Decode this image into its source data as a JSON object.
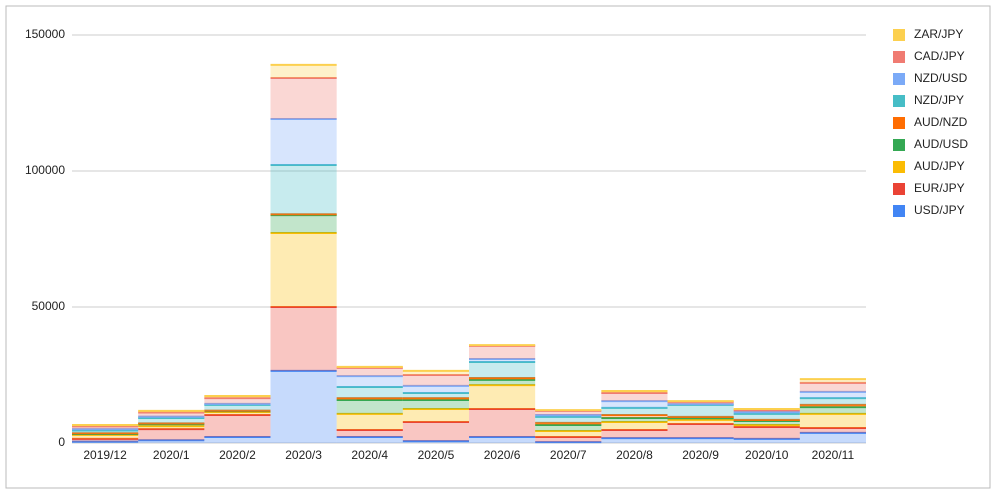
{
  "chart_data": {
    "type": "stepped-area",
    "categories": [
      "2019/12",
      "2020/1",
      "2020/2",
      "2020/3",
      "2020/4",
      "2020/5",
      "2020/6",
      "2020/7",
      "2020/8",
      "2020/9",
      "2020/10",
      "2020/11"
    ],
    "series": [
      {
        "name": "USD/JPY",
        "color": "#4285f4",
        "values": [
          500,
          1000,
          2200,
          26500,
          2200,
          700,
          2200,
          300,
          1800,
          1800,
          1500,
          3700
        ]
      },
      {
        "name": "EUR/JPY",
        "color": "#ea4335",
        "values": [
          1000,
          4100,
          8100,
          23500,
          2600,
          7000,
          10300,
          1900,
          3000,
          5200,
          4400,
          1800
        ]
      },
      {
        "name": "AUD/JPY",
        "color": "#fbbc04",
        "values": [
          1500,
          1100,
          1100,
          27200,
          5900,
          4800,
          8800,
          2200,
          2900,
          1500,
          700,
          5200
        ]
      },
      {
        "name": "AUD/USD",
        "color": "#34a853",
        "values": [
          300,
          800,
          300,
          6600,
          5100,
          3300,
          1900,
          2200,
          1500,
          700,
          1500,
          2500
        ]
      },
      {
        "name": "AUD/NZD",
        "color": "#ff6d01",
        "values": [
          300,
          200,
          200,
          300,
          700,
          700,
          700,
          800,
          1100,
          400,
          400,
          800
        ]
      },
      {
        "name": "NZD/JPY",
        "color": "#46bdc6",
        "values": [
          1000,
          2000,
          2100,
          18100,
          4100,
          1900,
          5900,
          2200,
          2600,
          4400,
          2200,
          2500
        ]
      },
      {
        "name": "NZD/USD",
        "color": "#7baaf7",
        "values": [
          500,
          500,
          400,
          16900,
          4000,
          2600,
          1100,
          700,
          2500,
          300,
          700,
          2300
        ]
      },
      {
        "name": "CAD/JPY",
        "color": "#f07b72",
        "values": [
          1000,
          1500,
          2100,
          15100,
          3000,
          4000,
          4800,
          1500,
          3000,
          800,
          700,
          3300
        ]
      },
      {
        "name": "ZAR/JPY",
        "color": "#fcd04f",
        "values": [
          500,
          600,
          800,
          4800,
          400,
          1500,
          300,
          300,
          700,
          300,
          400,
          1400
        ]
      }
    ],
    "ylim": [
      0,
      150000
    ],
    "yticks": [
      0,
      50000,
      100000,
      150000
    ],
    "grid": true,
    "stacked": true,
    "legend": "right"
  }
}
